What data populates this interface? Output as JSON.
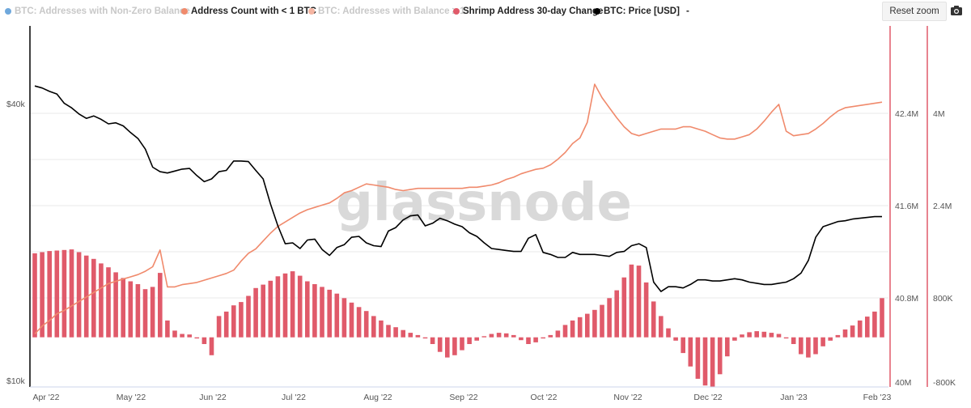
{
  "legend": [
    {
      "label": "BTC: Addresses with Non-Zero Balance",
      "color": "#6fa8dc",
      "state": "muted"
    },
    {
      "label": "Address Count with < 1 BTC",
      "color": "#f08a6c",
      "state": "active"
    },
    {
      "label": "BTC: Addresses with Balance ≥ 1",
      "color": "#f5b5a2",
      "state": "muted"
    },
    {
      "label": "Shrimp Address 30-day Change",
      "color": "#e05a6a",
      "state": "active"
    },
    {
      "label": "BTC: Price [USD]",
      "color": "#000000",
      "state": "active"
    },
    {
      "label": "-",
      "color": "",
      "state": "active"
    }
  ],
  "toolbar": {
    "reset_zoom": "Reset zoom",
    "camera_icon": "camera-icon"
  },
  "watermark": "glassnode",
  "colors": {
    "price": "#000000",
    "count": "#f08a6c",
    "change": "#e05a6a",
    "axis_red": "#e05a6a"
  },
  "chart_data": {
    "type": "line",
    "x_labels": [
      "Apr '22",
      "May '22",
      "Jun '22",
      "Jul '22",
      "Aug '22",
      "Sep '22",
      "Oct '22",
      "Nov '22",
      "Dec '22",
      "Jan '23",
      "Feb '23"
    ],
    "axes": {
      "price_axis": {
        "ticks": [
          "$40k",
          "$10k"
        ],
        "scale": "log"
      },
      "count_axis": {
        "ticks": [
          "42.4M",
          "41.6M",
          "40.8M",
          "40M"
        ],
        "range": [
          40000000,
          43000000
        ]
      },
      "change_axis": {
        "ticks": [
          "4M",
          "2.4M",
          "800K",
          "-800K"
        ],
        "range": [
          -800000,
          5600000
        ]
      }
    },
    "series": [
      {
        "name": "BTC: Price [USD]",
        "kind": "line",
        "axis": "price",
        "values": [
          46500,
          46000,
          45200,
          44600,
          42500,
          41500,
          40200,
          39300,
          39800,
          39100,
          38200,
          38400,
          37800,
          36500,
          35400,
          33500,
          30500,
          29800,
          29600,
          29900,
          30200,
          30300,
          29200,
          28300,
          28700,
          29800,
          30000,
          31500,
          31500,
          31400,
          30000,
          28700,
          25200,
          22500,
          20500,
          20600,
          20000,
          20900,
          21000,
          19900,
          19300,
          20100,
          20400,
          21200,
          21300,
          20600,
          20300,
          20200,
          21900,
          22300,
          23200,
          23700,
          23800,
          22500,
          22800,
          23400,
          23100,
          22700,
          22400,
          21700,
          21300,
          20600,
          20000,
          19900,
          19800,
          19700,
          19700,
          21100,
          21500,
          19600,
          19400,
          19100,
          19100,
          19600,
          19400,
          19400,
          19400,
          19300,
          19200,
          19600,
          19700,
          20300,
          20500,
          20100,
          16800,
          16000,
          16400,
          16400,
          16300,
          16600,
          17000,
          17000,
          16900,
          16900,
          17000,
          17100,
          17000,
          16800,
          16700,
          16600,
          16600,
          16700,
          16800,
          17100,
          17600,
          18800,
          21200,
          22400,
          22700,
          23000,
          23100,
          23300,
          23400,
          23500,
          23600,
          23600
        ]
      },
      {
        "name": "Address Count with < 1 BTC",
        "kind": "line",
        "axis": "count",
        "values": [
          40430000,
          40500000,
          40550000,
          40610000,
          40640000,
          40680000,
          40720000,
          40760000,
          40800000,
          40840000,
          40880000,
          40900000,
          40920000,
          40940000,
          40960000,
          40990000,
          41030000,
          41180000,
          40850000,
          40850000,
          40870000,
          40880000,
          40890000,
          40910000,
          40930000,
          40950000,
          40970000,
          41000000,
          41080000,
          41150000,
          41190000,
          41260000,
          41330000,
          41390000,
          41430000,
          41470000,
          41510000,
          41540000,
          41560000,
          41580000,
          41600000,
          41640000,
          41690000,
          41710000,
          41740000,
          41770000,
          41760000,
          41750000,
          41740000,
          41720000,
          41710000,
          41720000,
          41730000,
          41730000,
          41730000,
          41730000,
          41730000,
          41730000,
          41730000,
          41740000,
          41740000,
          41750000,
          41760000,
          41780000,
          41810000,
          41830000,
          41860000,
          41880000,
          41900000,
          41910000,
          41940000,
          41990000,
          42050000,
          42130000,
          42180000,
          42320000,
          42660000,
          42540000,
          42450000,
          42360000,
          42280000,
          42220000,
          42200000,
          42220000,
          42240000,
          42260000,
          42260000,
          42260000,
          42280000,
          42280000,
          42260000,
          42240000,
          42210000,
          42180000,
          42170000,
          42170000,
          42190000,
          42210000,
          42260000,
          42330000,
          42410000,
          42480000,
          42240000,
          42200000,
          42210000,
          42220000,
          42260000,
          42310000,
          42370000,
          42420000,
          42450000,
          42460000,
          42470000,
          42480000,
          42490000,
          42500000
        ]
      },
      {
        "name": "Shrimp Address 30-day Change",
        "kind": "bar",
        "axis": "change",
        "values": [
          1500000,
          1520000,
          1540000,
          1550000,
          1560000,
          1570000,
          1520000,
          1460000,
          1400000,
          1320000,
          1250000,
          1160000,
          1060000,
          1000000,
          950000,
          860000,
          900000,
          1150000,
          300000,
          120000,
          60000,
          50000,
          -20000,
          -120000,
          -320000,
          380000,
          460000,
          570000,
          630000,
          740000,
          880000,
          940000,
          1010000,
          1090000,
          1140000,
          1180000,
          1100000,
          1000000,
          950000,
          900000,
          850000,
          780000,
          700000,
          620000,
          540000,
          470000,
          380000,
          300000,
          220000,
          180000,
          130000,
          80000,
          40000,
          -20000,
          -120000,
          -260000,
          -360000,
          -320000,
          -230000,
          -120000,
          -60000,
          20000,
          60000,
          80000,
          70000,
          40000,
          -50000,
          -120000,
          -90000,
          -20000,
          40000,
          120000,
          220000,
          300000,
          360000,
          420000,
          490000,
          580000,
          700000,
          840000,
          1070000,
          1300000,
          1280000,
          980000,
          640000,
          380000,
          160000,
          -60000,
          -280000,
          -520000,
          -740000,
          -860000,
          -880000,
          -660000,
          -340000,
          -60000,
          50000,
          90000,
          110000,
          100000,
          80000,
          60000,
          -20000,
          -120000,
          -300000,
          -360000,
          -300000,
          -160000,
          -60000,
          40000,
          140000,
          210000,
          300000,
          370000,
          460000,
          700000
        ]
      }
    ]
  }
}
